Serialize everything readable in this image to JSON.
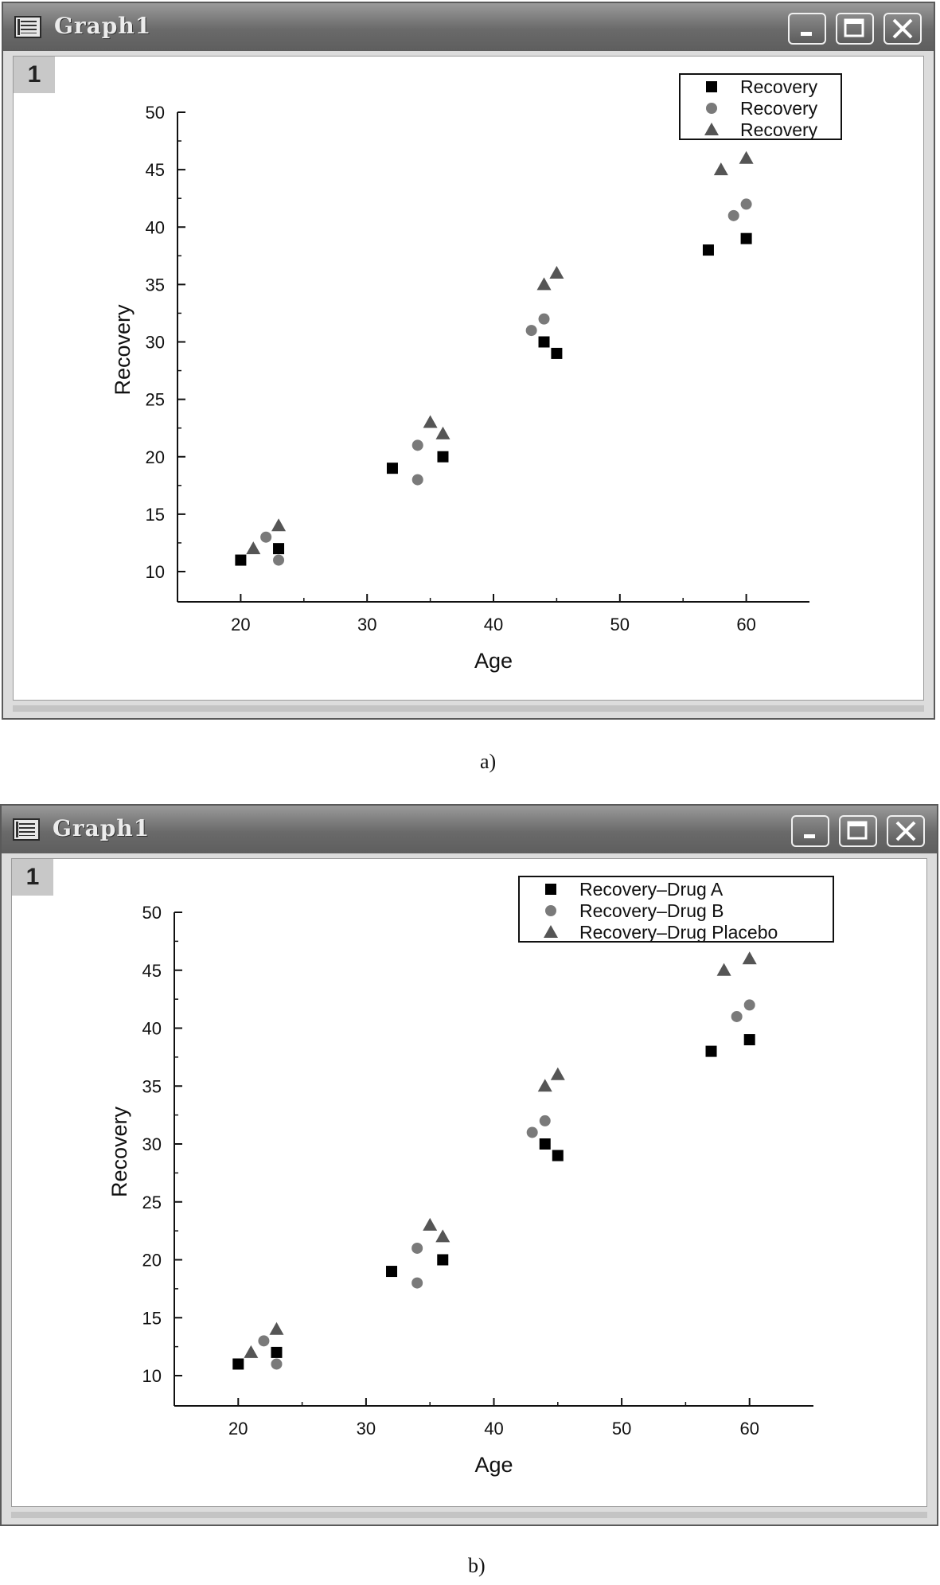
{
  "panels": [
    {
      "caption": "a)",
      "window_title": "Graph1",
      "layer_label": "1",
      "buttons": [
        "minimize",
        "maximize",
        "close"
      ],
      "chart_data": {
        "type": "scatter",
        "xlabel": "Age",
        "ylabel": "Recovery",
        "xlim": [
          15,
          65
        ],
        "ylim": [
          7.5,
          50
        ],
        "xticks": [
          20,
          30,
          40,
          50,
          60
        ],
        "yticks": [
          10,
          15,
          20,
          25,
          30,
          35,
          40,
          45,
          50
        ],
        "grid": false,
        "legend_position": "top-right",
        "series": [
          {
            "name": "Recovery",
            "marker": "square",
            "color": "#000000",
            "x": [
              20,
              23,
              32,
              36,
              44,
              45,
              57,
              60
            ],
            "y": [
              11,
              12,
              19,
              20,
              30,
              29,
              38,
              39
            ]
          },
          {
            "name": "Recovery",
            "marker": "circle",
            "color": "#7a7a7a",
            "x": [
              22,
              23,
              34,
              34,
              43,
              44,
              59,
              60
            ],
            "y": [
              13,
              11,
              21,
              18,
              31,
              32,
              41,
              42
            ]
          },
          {
            "name": "Recovery",
            "marker": "triangle",
            "color": "#555555",
            "x": [
              21,
              23,
              35,
              36,
              44,
              45,
              58,
              60
            ],
            "y": [
              12,
              14,
              23,
              22,
              35,
              36,
              45,
              46
            ]
          }
        ]
      }
    },
    {
      "caption": "b)",
      "window_title": "Graph1",
      "layer_label": "1",
      "buttons": [
        "minimize",
        "maximize",
        "close"
      ],
      "chart_data": {
        "type": "scatter",
        "xlabel": "Age",
        "ylabel": "Recovery",
        "xlim": [
          15,
          65
        ],
        "ylim": [
          7.5,
          50
        ],
        "xticks": [
          20,
          30,
          40,
          50,
          60
        ],
        "yticks": [
          10,
          15,
          20,
          25,
          30,
          35,
          40,
          45,
          50
        ],
        "grid": false,
        "legend_position": "top-right",
        "series": [
          {
            "name": "Recovery–Drug A",
            "marker": "square",
            "color": "#000000",
            "x": [
              20,
              23,
              32,
              36,
              44,
              45,
              57,
              60
            ],
            "y": [
              11,
              12,
              19,
              20,
              30,
              29,
              38,
              39
            ]
          },
          {
            "name": "Recovery–Drug B",
            "marker": "circle",
            "color": "#7a7a7a",
            "x": [
              22,
              23,
              34,
              34,
              43,
              44,
              59,
              60
            ],
            "y": [
              13,
              11,
              21,
              18,
              31,
              32,
              41,
              42
            ]
          },
          {
            "name": "Recovery–Drug Placebo",
            "marker": "triangle",
            "color": "#555555",
            "x": [
              21,
              23,
              35,
              36,
              44,
              45,
              58,
              60
            ],
            "y": [
              12,
              14,
              23,
              22,
              35,
              36,
              45,
              46
            ]
          }
        ]
      }
    }
  ]
}
